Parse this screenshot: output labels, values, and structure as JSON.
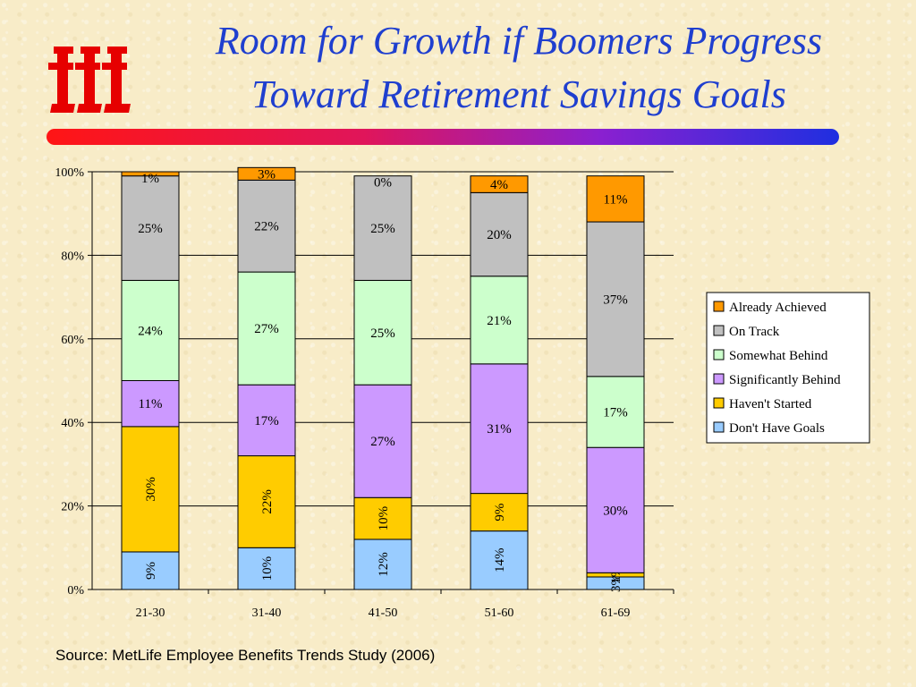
{
  "title": {
    "line1": "Room for Growth if Boomers Progress",
    "line2": "Toward Retirement Savings Goals"
  },
  "logo": {
    "icon": "iii-logo-icon",
    "color": "#e60000"
  },
  "source": "Source: MetLife Employee Benefits Trends Study (2006)",
  "chart_data": {
    "type": "bar",
    "stacked": true,
    "categories": [
      "21-30",
      "31-40",
      "41-50",
      "51-60",
      "61-69"
    ],
    "ylim": [
      0,
      100
    ],
    "yticks": [
      "0%",
      "20%",
      "40%",
      "60%",
      "80%",
      "100%"
    ],
    "grid": true,
    "legend_position": "right",
    "series": [
      {
        "name": "Don't Have Goals",
        "color": "#99ccff",
        "values": [
          9,
          10,
          12,
          14,
          3
        ],
        "labels": [
          "9%",
          "10%",
          "12%",
          "14%",
          "3%"
        ],
        "rotated": true
      },
      {
        "name": "Haven't Started",
        "color": "#ffcc00",
        "values": [
          30,
          22,
          10,
          9,
          1
        ],
        "labels": [
          "30%",
          "22%",
          "10%",
          "9%",
          "1%"
        ],
        "rotated": true
      },
      {
        "name": "Significantly Behind",
        "color": "#cc99ff",
        "values": [
          11,
          17,
          27,
          31,
          30
        ],
        "labels": [
          "11%",
          "17%",
          "27%",
          "31%",
          "30%"
        ],
        "rotated": false
      },
      {
        "name": "Somewhat Behind",
        "color": "#ccffcc",
        "values": [
          24,
          27,
          25,
          21,
          17
        ],
        "labels": [
          "24%",
          "27%",
          "25%",
          "21%",
          "17%"
        ],
        "rotated": false
      },
      {
        "name": "On Track",
        "color": "#c0c0c0",
        "values": [
          25,
          22,
          25,
          20,
          37
        ],
        "labels": [
          "25%",
          "22%",
          "25%",
          "20%",
          "37%"
        ],
        "rotated": false
      },
      {
        "name": "Already Achieved",
        "color": "#ff9900",
        "values": [
          1,
          3,
          0,
          4,
          11
        ],
        "labels": [
          "1%",
          "3%",
          "0%",
          "4%",
          "11%"
        ],
        "rotated": false
      }
    ]
  }
}
